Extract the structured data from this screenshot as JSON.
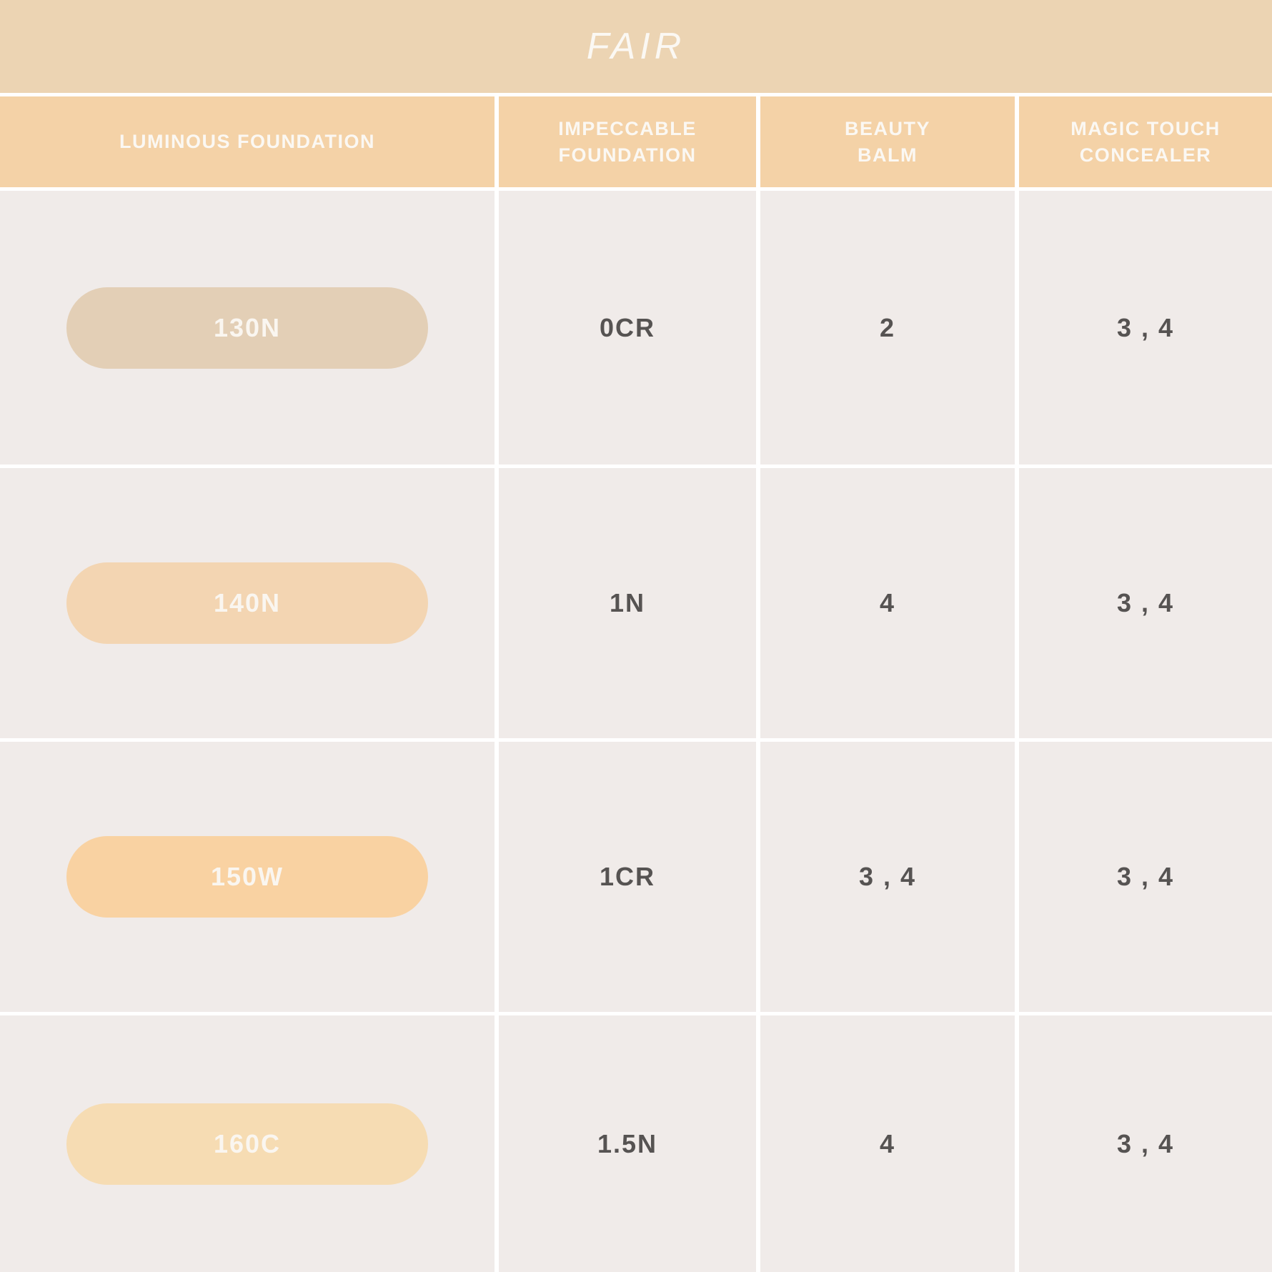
{
  "page": {
    "title": "FAIR"
  },
  "table": {
    "columns": [
      {
        "line1": "LUMINOUS FOUNDATION",
        "line2": ""
      },
      {
        "line1": "IMPECCABLE",
        "line2": "FOUNDATION"
      },
      {
        "line1": "BEAUTY",
        "line2": "BALM"
      },
      {
        "line1": "MAGIC TOUCH",
        "line2": "CONCEALER"
      }
    ],
    "rows": [
      {
        "shade": "130N",
        "swatch_color": "#e3cfb6",
        "values": [
          "0CR",
          "2",
          "3 , 4"
        ]
      },
      {
        "shade": "140N",
        "swatch_color": "#f3d5b2",
        "values": [
          "1N",
          "4",
          "3 , 4"
        ]
      },
      {
        "shade": "150W",
        "swatch_color": "#f9d2a2",
        "values": [
          "1CR",
          "3 , 4",
          "3 , 4"
        ]
      },
      {
        "shade": "160C",
        "swatch_color": "#f6dcb3",
        "values": [
          "1.5N",
          "4",
          "3 , 4"
        ]
      }
    ]
  },
  "colors": {
    "banner_bg": "#ecd4b3",
    "header_bg": "#f4d2a7",
    "cell_bg": "#f0ebe9",
    "divider": "#ffffff",
    "value_text": "#565352",
    "light_text": "#fbf8f3"
  },
  "chart_data": {
    "type": "table",
    "title": "FAIR",
    "columns": [
      "LUMINOUS FOUNDATION",
      "IMPECCABLE FOUNDATION",
      "BEAUTY BALM",
      "MAGIC TOUCH CONCEALER"
    ],
    "rows": [
      [
        "130N",
        "0CR",
        "2",
        "3 , 4"
      ],
      [
        "140N",
        "1N",
        "4",
        "3 , 4"
      ],
      [
        "150W",
        "1CR",
        "3 , 4",
        "3 , 4"
      ],
      [
        "160C",
        "1.5N",
        "4",
        "3 , 4"
      ]
    ],
    "swatch_colors": [
      "#e3cfb6",
      "#f3d5b2",
      "#f9d2a2",
      "#f6dcb3"
    ],
    "layout": {
      "grid": "on",
      "divider_color": "#ffffff",
      "header_position": "top"
    }
  }
}
